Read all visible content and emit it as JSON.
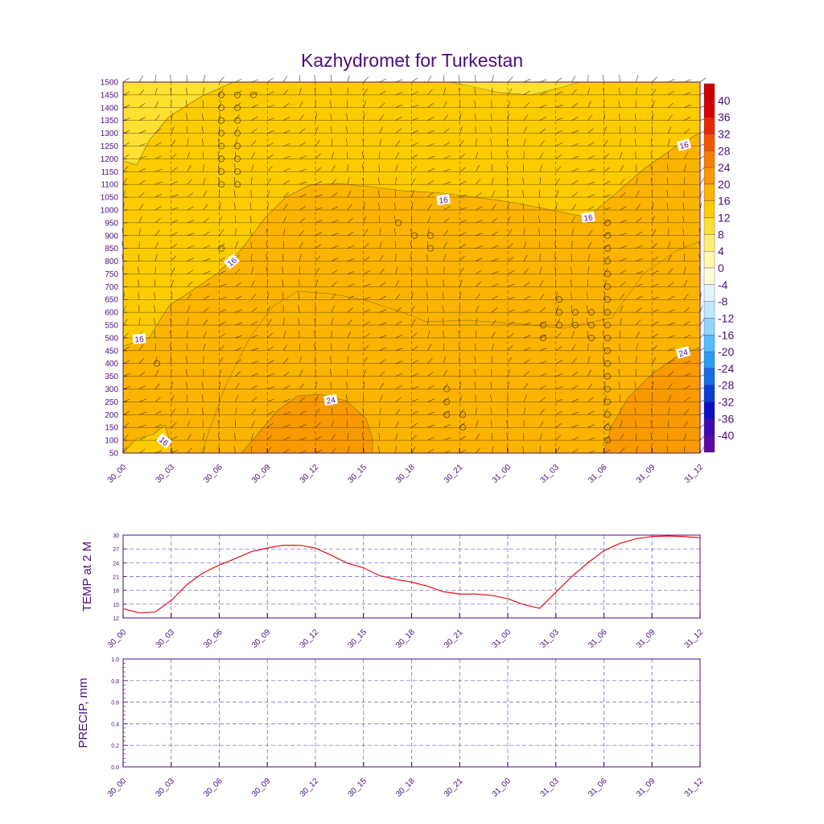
{
  "title": "Kazhydromet for Turkestan",
  "colors": {
    "ink": "#4b0d7a",
    "temp_line": "#e01010",
    "grid": "#6a5acd"
  },
  "chart_data": [
    {
      "type": "heatmap",
      "name": "cross-section",
      "title": "Kazhydromet for Turkestan",
      "x_ticks": [
        "30_00",
        "30_03",
        "30_06",
        "30_09",
        "30_12",
        "30_15",
        "30_18",
        "30_21",
        "31_00",
        "31_03",
        "31_06",
        "31_09",
        "31_12"
      ],
      "y_ticks": [
        50,
        100,
        150,
        200,
        250,
        300,
        350,
        400,
        450,
        500,
        550,
        600,
        650,
        700,
        750,
        800,
        850,
        900,
        950,
        1000,
        1050,
        1100,
        1150,
        1200,
        1250,
        1300,
        1350,
        1400,
        1450,
        1500
      ],
      "ylim": [
        50,
        1500
      ],
      "colorbar": {
        "labels": [
          40,
          36,
          32,
          28,
          24,
          20,
          16,
          12,
          8,
          4,
          0,
          -4,
          -8,
          -12,
          -16,
          -20,
          -24,
          -28,
          -32,
          -36,
          -40
        ],
        "colors": [
          "#d40000",
          "#e62a00",
          "#f25500",
          "#f77f00",
          "#f99a00",
          "#fbb400",
          "#fccc00",
          "#fde030",
          "#fff070",
          "#fffaa8",
          "#ffffd8",
          "#e0f6ff",
          "#bfe9ff",
          "#8fd6ff",
          "#55bbff",
          "#2b9cf0",
          "#1470e0",
          "#0a3fd0",
          "#0a10c0",
          "#3a0ab0",
          "#5a0aa0"
        ]
      },
      "contour_labels": [
        "16",
        "16",
        "16",
        "16",
        "16",
        "16",
        "24",
        "24"
      ],
      "grid": true
    },
    {
      "type": "line",
      "name": "temperature",
      "ylabel": "TEMP at 2 M",
      "x_ticks": [
        "30_00",
        "30_03",
        "30_06",
        "30_09",
        "30_12",
        "30_15",
        "30_18",
        "30_21",
        "31_00",
        "31_03",
        "31_06",
        "31_09",
        "31_12"
      ],
      "y_ticks": [
        12,
        15,
        18,
        21,
        24,
        27,
        30
      ],
      "ylim": [
        12,
        30
      ],
      "x": [
        0,
        1,
        2,
        3,
        4,
        5,
        6,
        7,
        8,
        9,
        10,
        11,
        12,
        13,
        14,
        15,
        16,
        17,
        18,
        19,
        20,
        21,
        22,
        23,
        24,
        25,
        26,
        27,
        28,
        29,
        30,
        31,
        32,
        33,
        34,
        35,
        36
      ],
      "values": [
        14.0,
        13.1,
        13.3,
        15.8,
        19.3,
        21.8,
        23.5,
        24.9,
        26.4,
        27.2,
        27.8,
        27.8,
        27.2,
        25.6,
        23.9,
        22.9,
        21.2,
        20.4,
        19.8,
        18.9,
        17.7,
        17.2,
        17.2,
        16.9,
        16.2,
        14.9,
        14.1,
        17.6,
        21.0,
        24.0,
        26.6,
        28.2,
        29.2,
        29.7,
        29.8,
        29.7,
        29.4
      ],
      "grid": true
    },
    {
      "type": "line",
      "name": "precipitation",
      "ylabel": "PRECIP, mm",
      "x_ticks": [
        "30_00",
        "30_03",
        "30_06",
        "30_09",
        "30_12",
        "30_15",
        "30_18",
        "30_21",
        "31_00",
        "31_03",
        "31_06",
        "31_09",
        "31_12"
      ],
      "y_ticks": [
        "0.0",
        "0.2",
        "0.4",
        "0.6",
        "0.8",
        "1.0"
      ],
      "ylim": [
        0,
        1
      ],
      "values": [],
      "grid": true
    }
  ]
}
